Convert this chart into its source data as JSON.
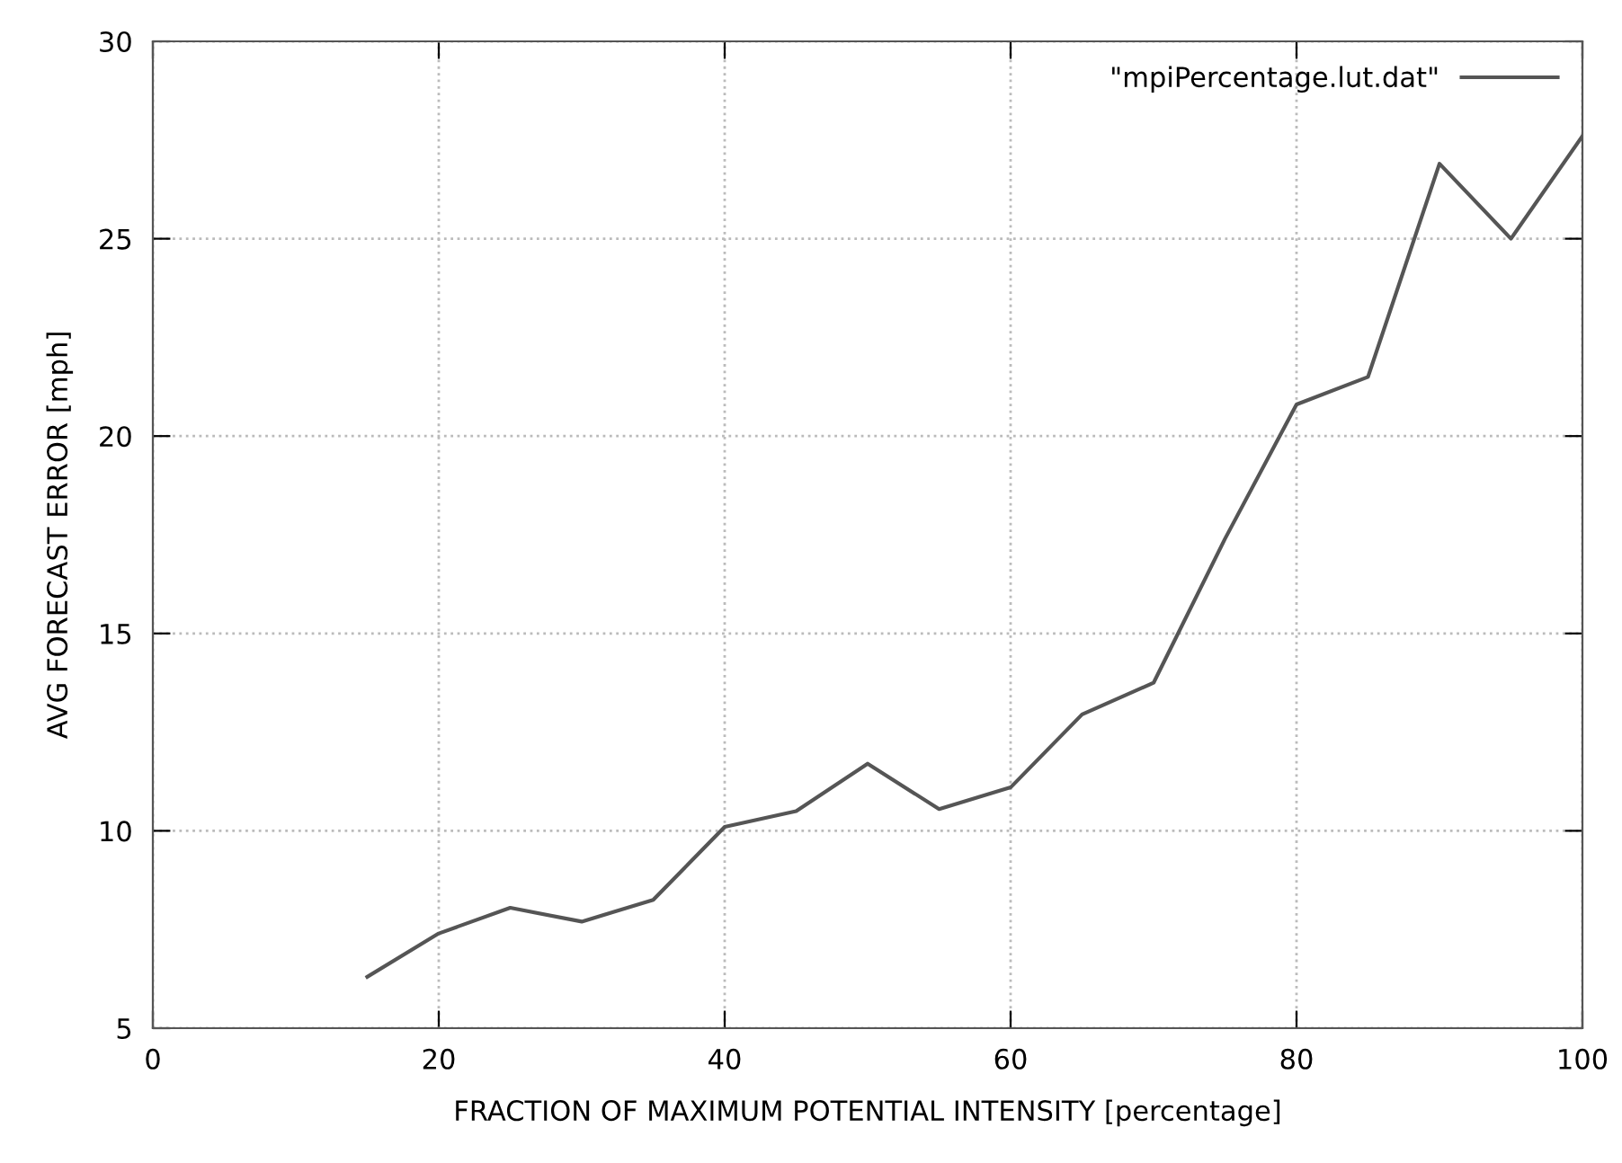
{
  "chart_data": {
    "type": "line",
    "xlabel": "FRACTION OF MAXIMUM POTENTIAL INTENSITY [percentage]",
    "ylabel": "AVG FORECAST ERROR [mph]",
    "x": [
      15,
      20,
      25,
      30,
      35,
      40,
      45,
      50,
      55,
      60,
      65,
      70,
      75,
      80,
      85,
      90,
      95,
      100
    ],
    "series": [
      {
        "name": "\"mpiPercentage.lut.dat\"",
        "color": "#555555",
        "values": [
          6.3,
          7.4,
          8.05,
          7.7,
          8.25,
          10.1,
          10.5,
          11.7,
          10.55,
          11.1,
          12.95,
          13.75,
          17.4,
          20.8,
          21.5,
          26.9,
          25.0,
          27.6
        ]
      }
    ],
    "xlim": [
      0,
      100
    ],
    "xticks": [
      0,
      20,
      40,
      60,
      80,
      100
    ],
    "ylim": [
      5,
      30
    ],
    "yticks": [
      5,
      10,
      15,
      20,
      25,
      30
    ],
    "grid": true,
    "legend": "top right",
    "marker": "none",
    "line_style": "solid"
  }
}
